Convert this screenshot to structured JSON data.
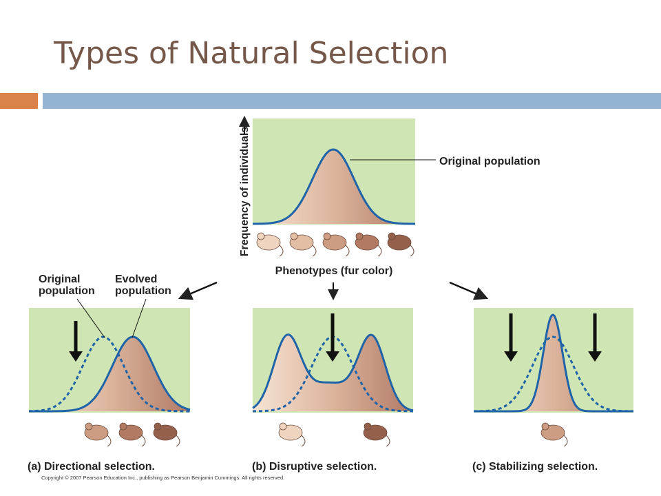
{
  "header": {
    "title": "Types of Natural Selection"
  },
  "top_panel": {
    "y_axis_label": "Frequency of individuals",
    "curve_label": "Original population",
    "x_axis_label": "Phenotypes (fur color)"
  },
  "panels": [
    {
      "original_label": "Original population",
      "evolved_label": "Evolved population",
      "caption": "(a) Directional selection."
    },
    {
      "caption": "(b) Disruptive selection."
    },
    {
      "caption": "(c) Stabilizing selection."
    }
  ],
  "footer": {
    "copyright": "Copyright © 2007 Pearson Education Inc., publishing as Pearson Benjamin Cummings. All rights reserved."
  }
}
